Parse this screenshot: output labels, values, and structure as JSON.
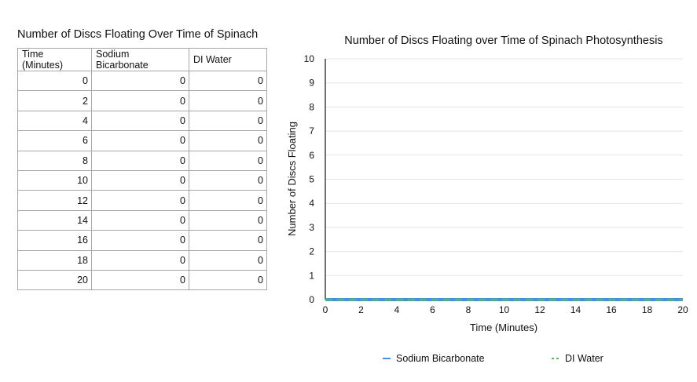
{
  "table": {
    "title": "Number of Discs Floating Over Time of Spinach",
    "headers": [
      "Time (Minutes)",
      "Sodium Bicarbonate",
      "DI Water"
    ],
    "rows": [
      [
        "0",
        "0",
        "0"
      ],
      [
        "2",
        "0",
        "0"
      ],
      [
        "4",
        "0",
        "0"
      ],
      [
        "6",
        "0",
        "0"
      ],
      [
        "8",
        "0",
        "0"
      ],
      [
        "10",
        "0",
        "0"
      ],
      [
        "12",
        "0",
        "0"
      ],
      [
        "14",
        "0",
        "0"
      ],
      [
        "16",
        "0",
        "0"
      ],
      [
        "18",
        "0",
        "0"
      ],
      [
        "20",
        "0",
        "0"
      ]
    ]
  },
  "chart_data": {
    "type": "line",
    "title": "Number of Discs Floating over Time of Spinach Photosynthesis",
    "xlabel": "Time (Minutes)",
    "ylabel": "Number of Discs Floating",
    "x": [
      0,
      2,
      4,
      6,
      8,
      10,
      12,
      14,
      16,
      18,
      20
    ],
    "xlim": [
      0,
      20
    ],
    "ylim": [
      0,
      10
    ],
    "xticks": [
      0,
      2,
      4,
      6,
      8,
      10,
      12,
      14,
      16,
      18,
      20
    ],
    "yticks": [
      0,
      1,
      2,
      3,
      4,
      5,
      6,
      7,
      8,
      9,
      10
    ],
    "grid": true,
    "legend_position": "bottom",
    "series": [
      {
        "name": "Sodium Bicarbonate",
        "values": [
          0,
          0,
          0,
          0,
          0,
          0,
          0,
          0,
          0,
          0,
          0
        ],
        "color": "#4a90d9",
        "style": "solid"
      },
      {
        "name": "DI Water",
        "values": [
          0,
          0,
          0,
          0,
          0,
          0,
          0,
          0,
          0,
          0,
          0
        ],
        "color": "#5cb85c",
        "style": "dashed"
      }
    ]
  }
}
